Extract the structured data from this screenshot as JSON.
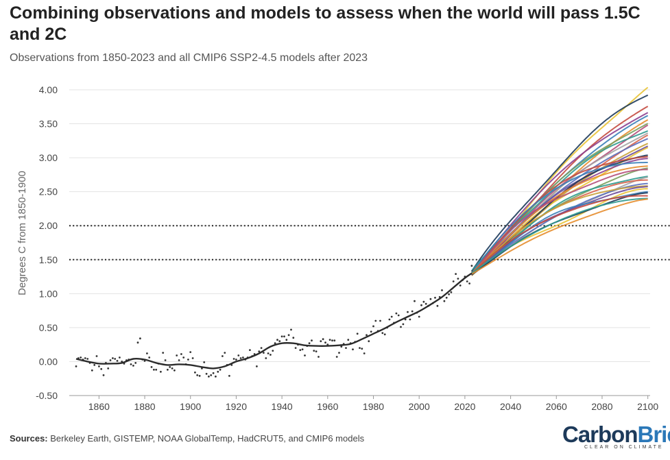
{
  "title": "Combining observations and models to assess when the world will pass 1.5C and 2C",
  "subtitle": "Observations from 1850-2023 and all CMIP6 SSP2-4.5 models after 2023",
  "sources_label": "Sources:",
  "sources_text": " Berkeley Earth, GISTEMP, NOAA GlobalTemp, HadCRUT5, and CMIP6 models",
  "logo": {
    "part1": "Carbon",
    "part2": "Brief",
    "tagline": "CLEAR ON CLIMATE"
  },
  "chart_data": {
    "type": "line",
    "ylabel": "Degrees C from 1850-1900",
    "xlabel": "",
    "xlim": [
      1847,
      2101
    ],
    "ylim": [
      -0.5,
      4.05
    ],
    "x_ticks": [
      "1860",
      "1880",
      "1900",
      "1920",
      "1940",
      "1960",
      "1980",
      "2000",
      "2020",
      "2040",
      "2060",
      "2080",
      "2100"
    ],
    "y_ticks": [
      "-0.50",
      "0.00",
      "0.50",
      "1.00",
      "1.50",
      "2.00",
      "2.50",
      "3.00",
      "3.50",
      "4.00"
    ],
    "reference_lines": [
      1.5,
      2.0
    ],
    "observations": {
      "x": [
        1850,
        1851,
        1852,
        1853,
        1854,
        1855,
        1856,
        1857,
        1858,
        1859,
        1860,
        1861,
        1862,
        1863,
        1864,
        1865,
        1866,
        1867,
        1868,
        1869,
        1870,
        1871,
        1872,
        1873,
        1874,
        1875,
        1876,
        1877,
        1878,
        1879,
        1880,
        1881,
        1882,
        1883,
        1884,
        1885,
        1886,
        1887,
        1888,
        1889,
        1890,
        1891,
        1892,
        1893,
        1894,
        1895,
        1896,
        1897,
        1898,
        1899,
        1900,
        1901,
        1902,
        1903,
        1904,
        1905,
        1906,
        1907,
        1908,
        1909,
        1910,
        1911,
        1912,
        1913,
        1914,
        1915,
        1916,
        1917,
        1918,
        1919,
        1920,
        1921,
        1922,
        1923,
        1924,
        1925,
        1926,
        1927,
        1928,
        1929,
        1930,
        1931,
        1932,
        1933,
        1934,
        1935,
        1936,
        1937,
        1938,
        1939,
        1940,
        1941,
        1942,
        1943,
        1944,
        1945,
        1946,
        1947,
        1948,
        1949,
        1950,
        1951,
        1952,
        1953,
        1954,
        1955,
        1956,
        1957,
        1958,
        1959,
        1960,
        1961,
        1962,
        1963,
        1964,
        1965,
        1966,
        1967,
        1968,
        1969,
        1970,
        1971,
        1972,
        1973,
        1974,
        1975,
        1976,
        1977,
        1978,
        1979,
        1980,
        1981,
        1982,
        1983,
        1984,
        1985,
        1986,
        1987,
        1988,
        1989,
        1990,
        1991,
        1992,
        1993,
        1994,
        1995,
        1996,
        1997,
        1998,
        1999,
        2000,
        2001,
        2002,
        2003,
        2004,
        2005,
        2006,
        2007,
        2008,
        2009,
        2010,
        2011,
        2012,
        2013,
        2014,
        2015,
        2016,
        2017,
        2018,
        2019,
        2020,
        2021,
        2022,
        2023
      ],
      "y": [
        -0.07,
        0.05,
        0.06,
        0.03,
        0.05,
        0.04,
        -0.02,
        -0.13,
        -0.05,
        0.08,
        -0.07,
        -0.11,
        -0.2,
        -0.02,
        -0.1,
        0.02,
        0.05,
        0.04,
        0.01,
        0.06,
        0.0,
        -0.03,
        0.02,
        0.03,
        -0.04,
        -0.06,
        -0.02,
        0.28,
        0.34,
        0.03,
        0.01,
        0.12,
        0.06,
        -0.08,
        -0.12,
        -0.12,
        -0.03,
        -0.15,
        0.13,
        0.02,
        -0.12,
        -0.08,
        -0.1,
        -0.13,
        0.09,
        0.02,
        0.11,
        0.06,
        -0.04,
        0.03,
        0.14,
        0.05,
        -0.16,
        -0.2,
        -0.21,
        -0.1,
        -0.01,
        -0.18,
        -0.22,
        -0.2,
        -0.17,
        -0.22,
        -0.15,
        -0.12,
        0.08,
        0.13,
        -0.05,
        -0.21,
        -0.05,
        0.04,
        0.03,
        0.09,
        0.05,
        0.06,
        0.03,
        0.06,
        0.17,
        0.08,
        0.11,
        -0.07,
        0.15,
        0.2,
        0.13,
        0.05,
        0.12,
        0.1,
        0.16,
        0.27,
        0.32,
        0.3,
        0.37,
        0.37,
        0.32,
        0.39,
        0.47,
        0.35,
        0.2,
        0.25,
        0.17,
        0.18,
        0.09,
        0.23,
        0.27,
        0.31,
        0.16,
        0.15,
        0.07,
        0.3,
        0.33,
        0.28,
        0.25,
        0.32,
        0.31,
        0.31,
        0.07,
        0.13,
        0.22,
        0.26,
        0.2,
        0.32,
        0.27,
        0.18,
        0.29,
        0.41,
        0.2,
        0.19,
        0.12,
        0.39,
        0.3,
        0.44,
        0.52,
        0.6,
        0.45,
        0.6,
        0.42,
        0.4,
        0.5,
        0.62,
        0.66,
        0.57,
        0.71,
        0.68,
        0.51,
        0.55,
        0.62,
        0.73,
        0.62,
        0.74,
        0.89,
        0.72,
        0.66,
        0.83,
        0.88,
        0.85,
        0.82,
        0.92,
        0.86,
        0.94,
        0.82,
        0.95,
        1.05,
        0.89,
        0.94,
        0.99,
        1.02,
        1.18,
        1.29,
        1.22,
        1.12,
        1.2,
        1.25,
        1.18,
        1.15,
        1.41
      ]
    },
    "smoothed_trend": {
      "x": [
        1850,
        1855,
        1860,
        1865,
        1870,
        1875,
        1880,
        1885,
        1890,
        1895,
        1900,
        1905,
        1910,
        1915,
        1920,
        1925,
        1930,
        1935,
        1940,
        1945,
        1950,
        1955,
        1960,
        1965,
        1970,
        1975,
        1980,
        1985,
        1990,
        1995,
        2000,
        2005,
        2010,
        2015,
        2020,
        2023
      ],
      "y": [
        0.04,
        0.0,
        -0.03,
        -0.03,
        -0.02,
        0.04,
        0.03,
        -0.02,
        -0.05,
        -0.04,
        -0.05,
        -0.08,
        -0.1,
        -0.07,
        0.0,
        0.05,
        0.12,
        0.22,
        0.27,
        0.27,
        0.24,
        0.23,
        0.23,
        0.24,
        0.26,
        0.33,
        0.41,
        0.49,
        0.58,
        0.66,
        0.74,
        0.84,
        0.95,
        1.09,
        1.23,
        1.3
      ]
    },
    "model_endpoints_2100": [
      4.05,
      3.94,
      3.78,
      3.67,
      3.62,
      3.57,
      3.52,
      3.47,
      3.43,
      3.38,
      3.33,
      3.28,
      3.22,
      3.17,
      3.12,
      3.07,
      3.02,
      2.98,
      2.93,
      2.88,
      2.83,
      2.79,
      2.74,
      2.7,
      2.66,
      2.62,
      2.58,
      2.55,
      2.52,
      2.49,
      2.46,
      2.43,
      2.4,
      2.38
    ],
    "model_colors": [
      "#e8c336",
      "#1d3a5a",
      "#c44a3f",
      "#8c3f8f",
      "#3b7fb8",
      "#e58d2d",
      "#7a9e5e",
      "#b54f7a",
      "#2f9a8f",
      "#a4a4a4",
      "#d8634b",
      "#5a6fbd",
      "#c9a23a",
      "#6b4c9a",
      "#e8c336",
      "#1d3a5a",
      "#c44a3f",
      "#8c3f8f",
      "#3b7fb8",
      "#e58d2d",
      "#7a9e5e",
      "#b54f7a",
      "#2f9a8f",
      "#a4a4a4",
      "#d8634b",
      "#5a6fbd",
      "#c9a23a",
      "#6b4c9a",
      "#e8c336",
      "#3b7fb8",
      "#1d3a5a",
      "#c44a3f",
      "#2f9a8f",
      "#e58d2d"
    ]
  }
}
